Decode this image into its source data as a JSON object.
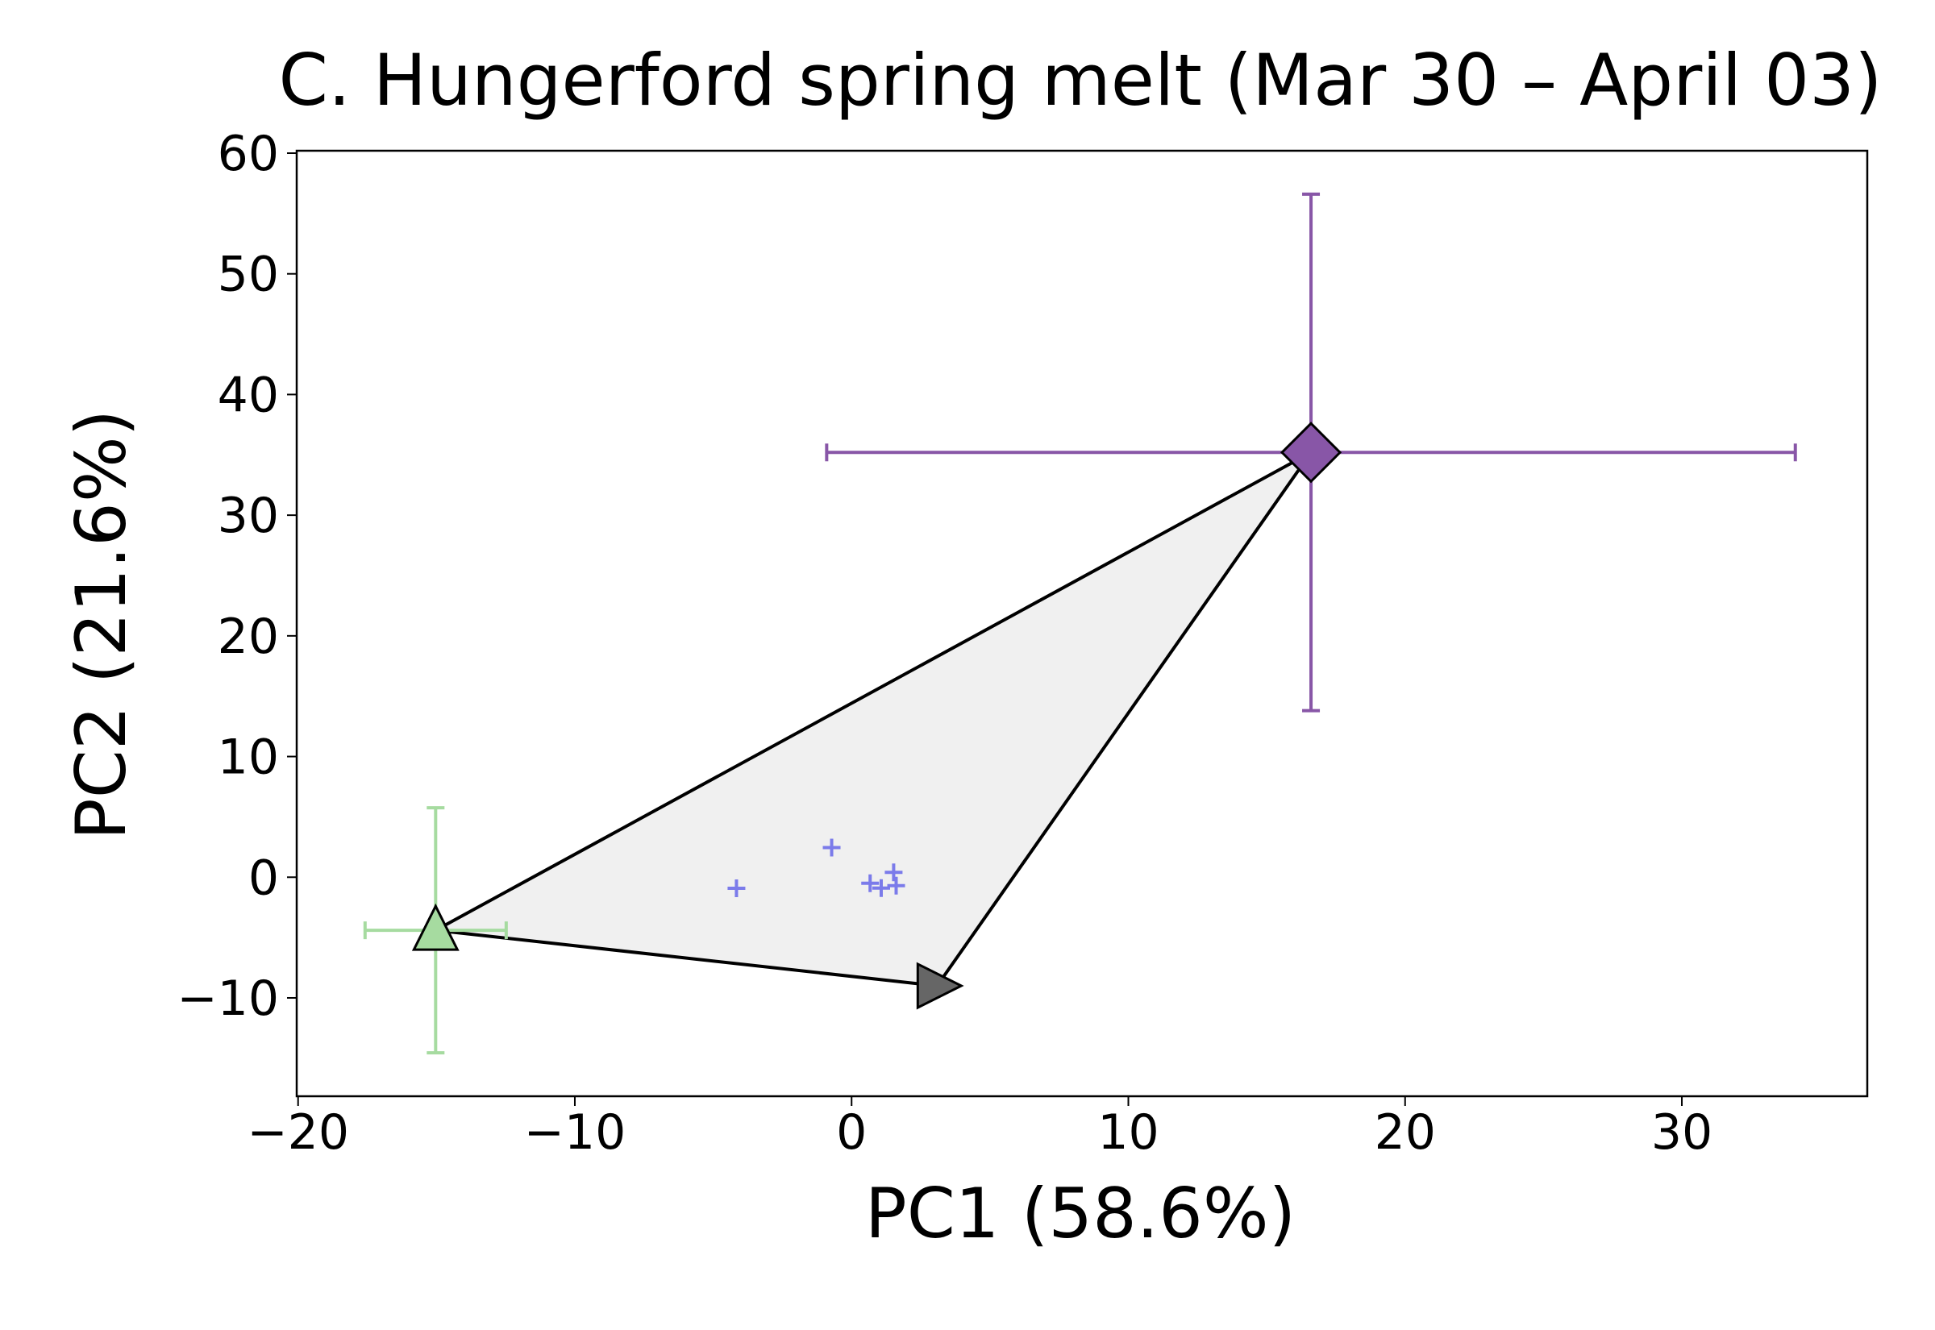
{
  "chart_data": {
    "type": "scatter",
    "title": "C. Hungerford spring melt (Mar 30 – April 03)",
    "xlabel": "PC1 (58.6%)",
    "ylabel": "PC2 (21.6%)",
    "xlim": [
      -20.05,
      36.7
    ],
    "ylim": [
      -18.15,
      60.2
    ],
    "xticks": [
      {
        "value": -20,
        "label": "−20"
      },
      {
        "value": -10,
        "label": "−10"
      },
      0,
      10,
      20,
      30
    ],
    "yticks": [
      {
        "value": -10,
        "label": "−10"
      },
      0,
      10,
      20,
      30,
      40,
      50,
      60
    ],
    "hull_color": "#f0f0f0",
    "series": [
      {
        "marker": "triangle-up",
        "color": "#a6dba0",
        "x": [
          -15.03
        ],
        "y": [
          -4.4
        ],
        "xerr": [
          2.55
        ],
        "yerr": [
          10.15
        ]
      },
      {
        "marker": "diamond",
        "color": "#8856a7",
        "x": [
          16.6
        ],
        "y": [
          35.2
        ],
        "xerr": [
          17.5
        ],
        "yerr": [
          21.4
        ]
      },
      {
        "marker": "triangle-right",
        "color": "#666666",
        "x": [
          3.09
        ],
        "y": [
          -9.0
        ]
      },
      {
        "marker": "plus",
        "color": "#7b7bea",
        "x": [
          -4.16,
          -0.72,
          0.67,
          1.07,
          1.52,
          1.61
        ],
        "y": [
          -0.92,
          2.46,
          -0.5,
          -0.9,
          0.4,
          -0.7
        ]
      }
    ]
  }
}
